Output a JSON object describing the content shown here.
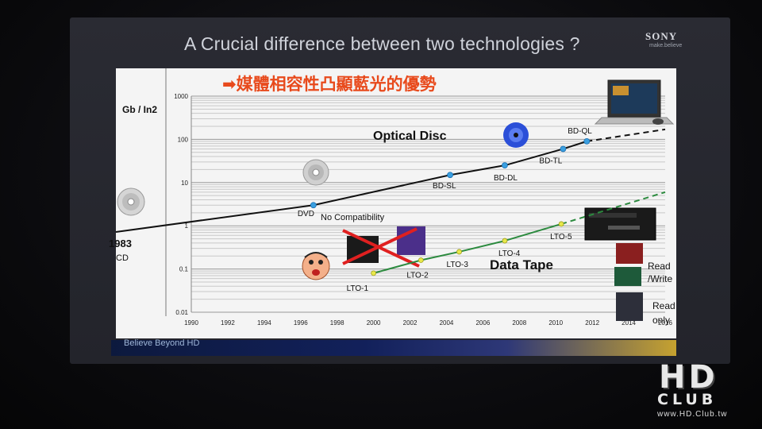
{
  "slide": {
    "title": "A Crucial difference between two technologies ?",
    "logo": "SONY",
    "tagline": "make.believe",
    "banner": "➡媒體相容性凸顯藍光的優勢",
    "footer": "Believe Beyond HD"
  },
  "watermark": {
    "big": "HD",
    "sub": "CLUB",
    "url": "www.HD.Club.tw"
  },
  "colors": {
    "optical": "#111111",
    "tape": "#2b8a3e",
    "optical_point": "#3a9fe0",
    "tape_point": "#e8e84a",
    "banner": "#e84a1c"
  },
  "chart_data": {
    "type": "line",
    "ylabel": "Gb / In2",
    "y_scale": "log",
    "ylim": [
      0.01,
      1000
    ],
    "xlim": [
      1990,
      2016
    ],
    "y_ticks": [
      "1000",
      "100",
      "10",
      "1",
      "0.1",
      "0.01"
    ],
    "x_ticks": [
      "1990",
      "1992",
      "1994",
      "1996",
      "1998",
      "2000",
      "2002",
      "2004",
      "2006",
      "2008",
      "2010",
      "2012",
      "2014",
      "2016"
    ],
    "series": [
      {
        "name": "Optical Disc",
        "points": [
          {
            "label": "DVD",
            "x": 1996.7,
            "y": 3
          },
          {
            "label": "BD-SL",
            "x": 2004.2,
            "y": 15
          },
          {
            "label": "BD-DL",
            "x": 2007.2,
            "y": 25
          },
          {
            "label": "BD-TL",
            "x": 2010.4,
            "y": 60
          },
          {
            "label": "BD-QL",
            "x": 2011.7,
            "y": 90
          }
        ]
      },
      {
        "name": "Data Tape",
        "points": [
          {
            "label": "LTO-1",
            "x": 2000.0,
            "y": 0.08
          },
          {
            "label": "LTO-2",
            "x": 2002.6,
            "y": 0.16
          },
          {
            "label": "LTO-3",
            "x": 2004.7,
            "y": 0.25
          },
          {
            "label": "LTO-4",
            "x": 2007.2,
            "y": 0.45
          },
          {
            "label": "LTO-5",
            "x": 2010.3,
            "y": 1.1
          }
        ]
      }
    ],
    "annotations": {
      "start_year": "1983",
      "start_label": "CD",
      "no_compat": "No Compatibility",
      "read_write": "Read /Write",
      "read_only": "Read only"
    }
  }
}
